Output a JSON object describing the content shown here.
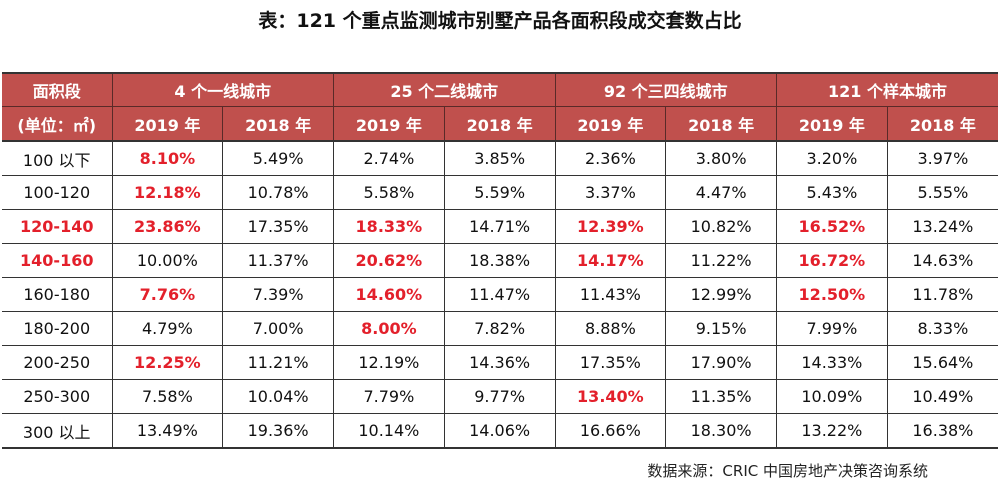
{
  "title": "表：121 个重点监测城市别墅产品各面积段成交套数占比",
  "header": {
    "first_col_line1": "面积段",
    "first_col_line2": "(单位：㎡)",
    "groups": [
      "4 个一线城市",
      "25 个二线城市",
      "92 个三四线城市",
      "121 个样本城市"
    ],
    "years": [
      "2019 年",
      "2018 年"
    ]
  },
  "accent_color": "#c0504d",
  "highlight_color": "#e3202b",
  "rows": [
    {
      "label": "100 以下",
      "label_highlight": false,
      "values": [
        "8.10%",
        "5.49%",
        "2.74%",
        "3.85%",
        "2.36%",
        "3.80%",
        "3.20%",
        "3.97%"
      ],
      "highlight": [
        0
      ]
    },
    {
      "label": "100-120",
      "label_highlight": false,
      "values": [
        "12.18%",
        "10.78%",
        "5.58%",
        "5.59%",
        "3.37%",
        "4.47%",
        "5.43%",
        "5.55%"
      ],
      "highlight": [
        0
      ]
    },
    {
      "label": "120-140",
      "label_highlight": true,
      "values": [
        "23.86%",
        "17.35%",
        "18.33%",
        "14.71%",
        "12.39%",
        "10.82%",
        "16.52%",
        "13.24%"
      ],
      "highlight": [
        0,
        2,
        4,
        6
      ]
    },
    {
      "label": "140-160",
      "label_highlight": true,
      "values": [
        "10.00%",
        "11.37%",
        "20.62%",
        "18.38%",
        "14.17%",
        "11.22%",
        "16.72%",
        "14.63%"
      ],
      "highlight": [
        2,
        4,
        6
      ]
    },
    {
      "label": "160-180",
      "label_highlight": false,
      "values": [
        "7.76%",
        "7.39%",
        "14.60%",
        "11.47%",
        "11.43%",
        "12.99%",
        "12.50%",
        "11.78%"
      ],
      "highlight": [
        0,
        2,
        6
      ]
    },
    {
      "label": "180-200",
      "label_highlight": false,
      "values": [
        "4.79%",
        "7.00%",
        "8.00%",
        "7.82%",
        "8.88%",
        "9.15%",
        "7.99%",
        "8.33%"
      ],
      "highlight": [
        2
      ]
    },
    {
      "label": "200-250",
      "label_highlight": false,
      "values": [
        "12.25%",
        "11.21%",
        "12.19%",
        "14.36%",
        "17.35%",
        "17.90%",
        "14.33%",
        "15.64%"
      ],
      "highlight": [
        0
      ]
    },
    {
      "label": "250-300",
      "label_highlight": false,
      "values": [
        "7.58%",
        "10.04%",
        "7.79%",
        "9.77%",
        "13.40%",
        "11.35%",
        "10.09%",
        "10.49%"
      ],
      "highlight": [
        4
      ]
    },
    {
      "label": "300 以上",
      "label_highlight": false,
      "values": [
        "13.49%",
        "19.36%",
        "10.14%",
        "14.06%",
        "16.66%",
        "18.30%",
        "13.22%",
        "16.38%"
      ],
      "highlight": []
    }
  ],
  "source": "数据来源：CRIC 中国房地产决策咨询系统"
}
